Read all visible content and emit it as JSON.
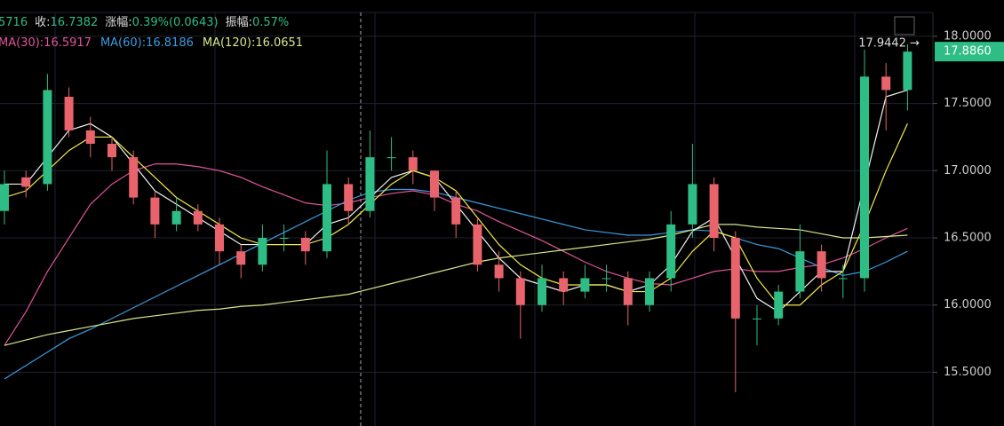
{
  "chart_data": {
    "type": "candlestick",
    "header_fragment": "5716",
    "stats": [
      {
        "label": "收:",
        "value": "16.7382"
      },
      {
        "label": "涨幅:",
        "value": "0.39%(0.0643)"
      },
      {
        "label": "振幅:",
        "value": "0.57%"
      }
    ],
    "up_color": "#2ebd85",
    "down_color": "#e8636b",
    "open": [
      16.7,
      16.95,
      16.9,
      17.55,
      17.3,
      17.2,
      17.1,
      16.8,
      16.6,
      16.7,
      16.6,
      16.4,
      16.3,
      16.5,
      16.5,
      16.4,
      16.9,
      16.7,
      17.1,
      17.1,
      17.0,
      16.8,
      16.6,
      16.3,
      16.2,
      16.0,
      16.2,
      16.1,
      16.2,
      16.2,
      16.0,
      16.2,
      16.6,
      16.9,
      16.5,
      15.9,
      15.9,
      16.1,
      16.4,
      16.2,
      16.2,
      17.7,
      17.6
    ],
    "high": [
      17.0,
      17.0,
      17.72,
      17.62,
      17.4,
      17.25,
      17.15,
      16.85,
      16.8,
      16.75,
      16.65,
      16.45,
      16.6,
      16.6,
      16.55,
      17.15,
      16.95,
      17.3,
      17.25,
      17.15,
      17.0,
      16.85,
      16.65,
      16.4,
      16.25,
      16.3,
      16.25,
      16.3,
      16.3,
      16.25,
      16.25,
      16.7,
      17.2,
      16.95,
      16.55,
      16.0,
      16.15,
      16.6,
      16.45,
      16.3,
      17.9,
      17.8,
      17.94
    ],
    "low": [
      16.6,
      16.8,
      16.85,
      17.25,
      17.1,
      17.0,
      16.75,
      16.5,
      16.55,
      16.55,
      16.3,
      16.2,
      16.25,
      16.4,
      16.3,
      16.35,
      16.6,
      16.65,
      17.0,
      16.9,
      16.7,
      16.5,
      16.25,
      16.1,
      15.75,
      15.95,
      16.0,
      16.05,
      16.1,
      15.85,
      15.95,
      16.1,
      16.5,
      16.4,
      15.35,
      15.7,
      15.85,
      16.05,
      16.1,
      16.05,
      16.1,
      17.3,
      17.45
    ],
    "close": [
      16.9,
      16.88,
      17.6,
      17.3,
      17.2,
      17.1,
      16.8,
      16.6,
      16.7,
      16.6,
      16.4,
      16.3,
      16.5,
      16.5,
      16.4,
      16.9,
      16.7,
      17.1,
      17.1,
      17.0,
      16.8,
      16.6,
      16.3,
      16.2,
      16.0,
      16.2,
      16.1,
      16.2,
      16.2,
      16.0,
      16.2,
      16.6,
      16.9,
      16.5,
      15.9,
      15.9,
      16.1,
      16.4,
      16.2,
      16.2,
      17.7,
      17.6,
      17.886
    ],
    "series": [
      {
        "name": "MA(30):16.5917",
        "color": "#e0559a",
        "values": [
          15.7,
          15.95,
          16.25,
          16.5,
          16.75,
          16.9,
          17.0,
          17.05,
          17.05,
          17.03,
          17.0,
          16.95,
          16.88,
          16.82,
          16.76,
          16.74,
          16.76,
          16.8,
          16.83,
          16.85,
          16.82,
          16.75,
          16.7,
          16.62,
          16.55,
          16.48,
          16.4,
          16.32,
          16.25,
          16.2,
          16.16,
          16.15,
          16.2,
          16.25,
          16.27,
          16.25,
          16.25,
          16.28,
          16.3,
          16.35,
          16.42,
          16.5,
          16.57
        ]
      },
      {
        "name": "MA(60):16.8186",
        "color": "#3a9be0",
        "values": [
          15.45,
          15.55,
          15.65,
          15.75,
          15.82,
          15.9,
          15.98,
          16.06,
          16.14,
          16.22,
          16.3,
          16.38,
          16.46,
          16.54,
          16.62,
          16.7,
          16.78,
          16.84,
          16.86,
          16.86,
          16.84,
          16.8,
          16.76,
          16.72,
          16.68,
          16.64,
          16.6,
          16.56,
          16.54,
          16.52,
          16.52,
          16.54,
          16.56,
          16.55,
          16.5,
          16.45,
          16.42,
          16.35,
          16.28,
          16.22,
          16.25,
          16.32,
          16.4
        ]
      },
      {
        "name": "MA(120):16.0651",
        "color": "#d6e88a",
        "values": [
          15.7,
          15.74,
          15.78,
          15.81,
          15.84,
          15.87,
          15.9,
          15.92,
          15.94,
          15.96,
          15.97,
          15.99,
          16.0,
          16.02,
          16.04,
          16.06,
          16.08,
          16.12,
          16.16,
          16.2,
          16.24,
          16.28,
          16.32,
          16.35,
          16.37,
          16.39,
          16.41,
          16.43,
          16.45,
          16.47,
          16.49,
          16.52,
          16.56,
          16.6,
          16.6,
          16.58,
          16.57,
          16.56,
          16.53,
          16.5,
          16.5,
          16.51,
          16.52
        ]
      },
      {
        "color": "#f2f2f2",
        "values": [
          16.9,
          16.9,
          17.1,
          17.3,
          17.35,
          17.25,
          17.05,
          16.85,
          16.75,
          16.65,
          16.55,
          16.45,
          16.45,
          16.45,
          16.45,
          16.6,
          16.65,
          16.8,
          16.95,
          17.0,
          16.95,
          16.75,
          16.55,
          16.35,
          16.2,
          16.15,
          16.1,
          16.15,
          16.15,
          16.1,
          16.15,
          16.3,
          16.55,
          16.65,
          16.35,
          16.05,
          15.95,
          16.1,
          16.25,
          16.25,
          16.9,
          17.55,
          17.6
        ]
      },
      {
        "color": "#f5e94a",
        "values": [
          16.8,
          16.85,
          17.0,
          17.15,
          17.25,
          17.25,
          17.1,
          16.95,
          16.8,
          16.7,
          16.6,
          16.5,
          16.45,
          16.45,
          16.45,
          16.5,
          16.6,
          16.75,
          16.9,
          17.0,
          16.95,
          16.85,
          16.65,
          16.45,
          16.3,
          16.2,
          16.15,
          16.15,
          16.15,
          16.1,
          16.1,
          16.2,
          16.4,
          16.55,
          16.5,
          16.2,
          16.0,
          16.0,
          16.15,
          16.25,
          16.6,
          17.0,
          17.35
        ]
      }
    ],
    "ylim": [
      15.1,
      18.27
    ],
    "yticks": [
      {
        "value": 18,
        "label": "18.0000"
      },
      {
        "value": 17.5,
        "label": "17.5000"
      },
      {
        "value": 17,
        "label": "17.0000"
      },
      {
        "value": 16.5,
        "label": "16.5000"
      },
      {
        "value": 16,
        "label": "16.0000"
      },
      {
        "value": 15.5,
        "label": "15.5000"
      }
    ],
    "grid": true,
    "price_tag": "17.8860",
    "high_annotation": "17.9442 →"
  }
}
